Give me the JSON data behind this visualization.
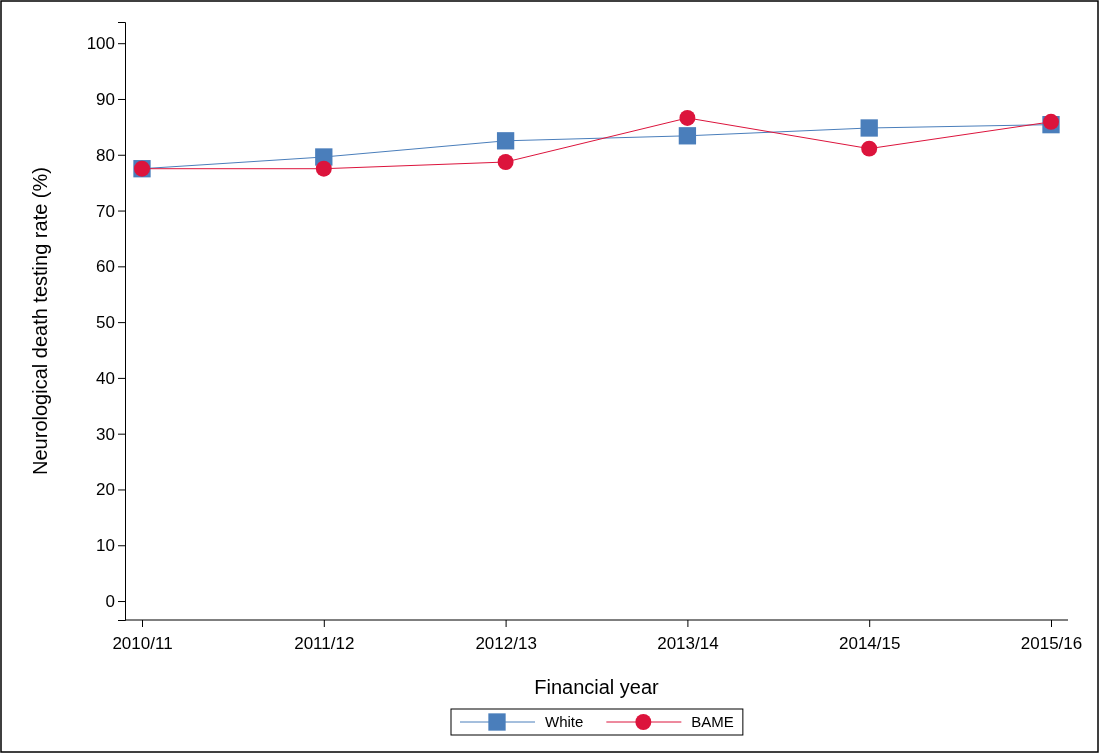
{
  "chart_data": {
    "type": "line",
    "xlabel": "Financial year",
    "ylabel": "Neurological death testing rate (%)",
    "categories": [
      "2010/11",
      "2011/12",
      "2012/13",
      "2013/14",
      "2014/15",
      "2015/16"
    ],
    "series": [
      {
        "name": "White",
        "color": "#4a7ebb",
        "marker": "square",
        "values": [
          77.5,
          79.6,
          82.5,
          83.4,
          84.8,
          85.4
        ]
      },
      {
        "name": "BAME",
        "color": "#dc143c",
        "marker": "circle",
        "values": [
          77.5,
          77.5,
          78.7,
          86.6,
          81.1,
          85.9
        ]
      }
    ],
    "ylim": [
      -3.4,
      103.8
    ],
    "yticks": [
      0,
      10,
      20,
      30,
      40,
      50,
      60,
      70,
      80,
      90,
      100
    ],
    "grid": false,
    "legend": "bottom",
    "line_style": "solid"
  }
}
